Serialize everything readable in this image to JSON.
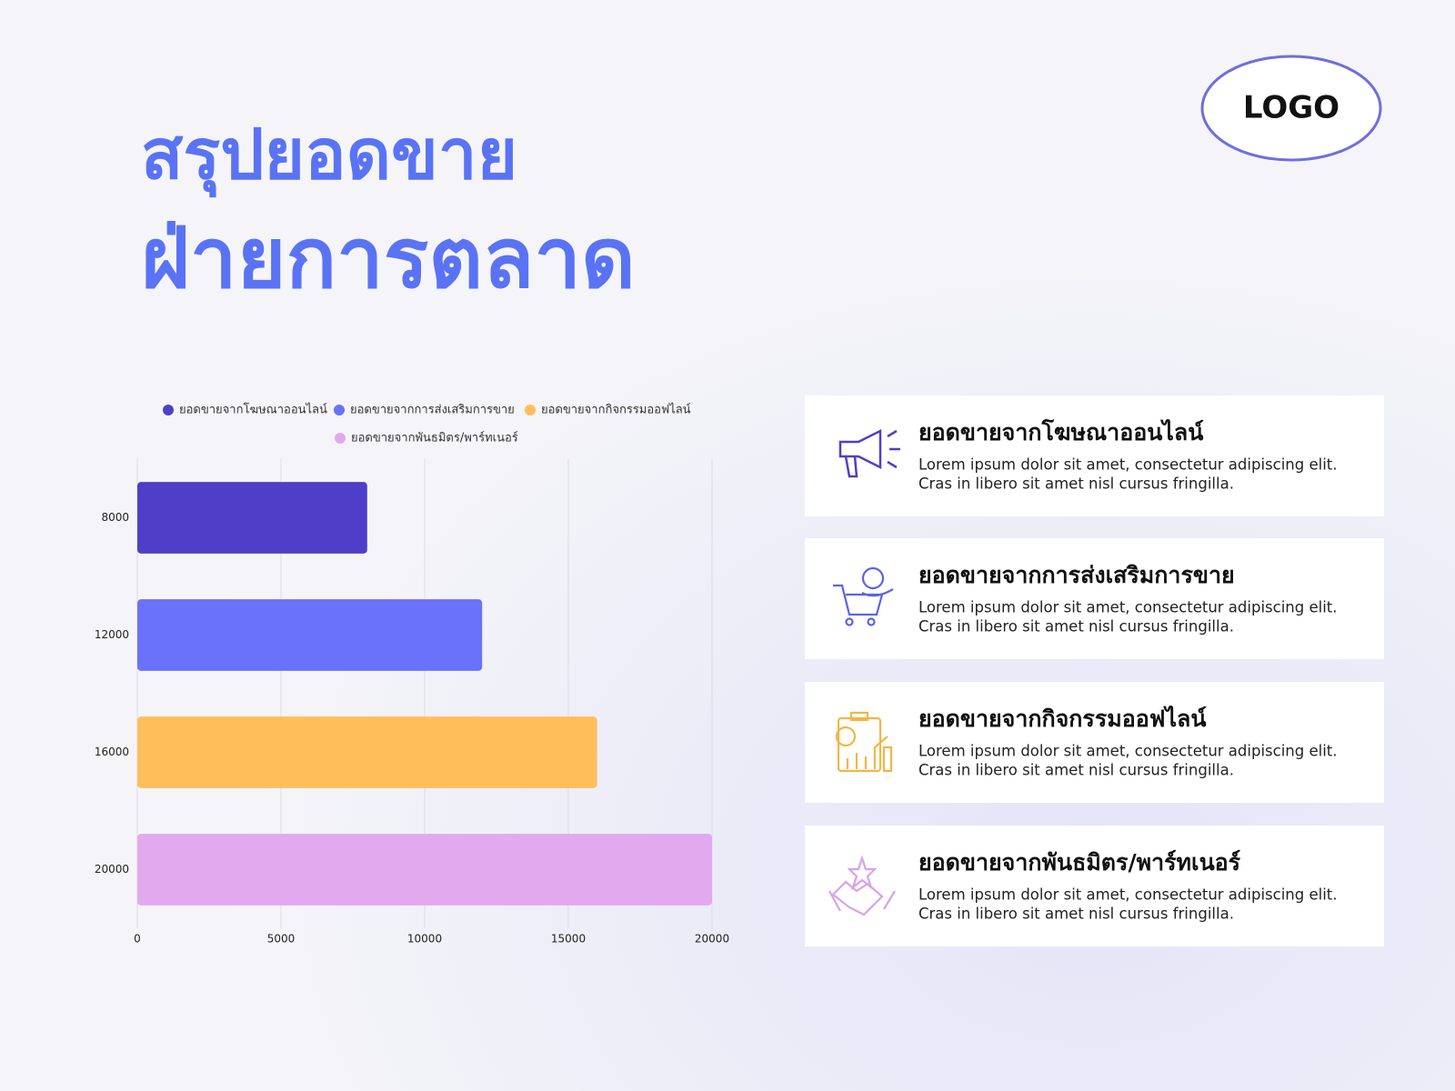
{
  "title_lines": [
    "สรุปยอดขาย",
    "ฝ่ายการตลาด"
  ],
  "logo": "LOGO",
  "chart_data": {
    "type": "bar",
    "orientation": "horizontal",
    "categories": [
      "8000",
      "12000",
      "16000",
      "20000"
    ],
    "series": [
      {
        "name": "ยอดขายจากโฆษณาออนไลน์",
        "color": "#4f3fc8",
        "values": [
          8000,
          null,
          null,
          null
        ]
      },
      {
        "name": "ยอดขายจากการส่งเสริมการขาย",
        "color": "#6a72fb",
        "values": [
          null,
          12000,
          null,
          null
        ]
      },
      {
        "name": "ยอดขายจากกิจกรรมออฟไลน์",
        "color": "#ffbe5a",
        "values": [
          null,
          null,
          16000,
          null
        ]
      },
      {
        "name": "ยอดขายจากพันธมิตร/พาร์ทเนอร์",
        "color": "#e2a9ef",
        "values": [
          null,
          null,
          null,
          20000
        ]
      }
    ],
    "xlim": [
      0,
      20000
    ],
    "xticks": [
      0,
      5000,
      10000,
      15000,
      20000
    ],
    "grid": true,
    "legend": "top"
  },
  "cards": [
    {
      "title": "ยอดขายจากโฆษณาออนไลน์",
      "body": [
        "Lorem ipsum dolor sit amet, consectetur adipiscing elit.",
        "Cras in libero sit amet nisl cursus fringilla."
      ]
    },
    {
      "title": "ยอดขายจากการส่งเสริมการขาย",
      "body": [
        "Lorem ipsum dolor sit amet, consectetur adipiscing elit.",
        "Cras in libero sit amet nisl cursus fringilla."
      ]
    },
    {
      "title": "ยอดขายจากกิจกรรมออฟไลน์",
      "body": [
        "Lorem ipsum dolor sit amet, consectetur adipiscing elit.",
        "Cras in libero sit amet nisl cursus fringilla."
      ]
    },
    {
      "title": "ยอดขายจากพันธมิตร/พาร์ทเนอร์",
      "body": [
        "Lorem ipsum dolor sit amet, consectetur adipiscing elit.",
        "Cras in libero sit amet nisl cursus fringilla."
      ]
    }
  ]
}
